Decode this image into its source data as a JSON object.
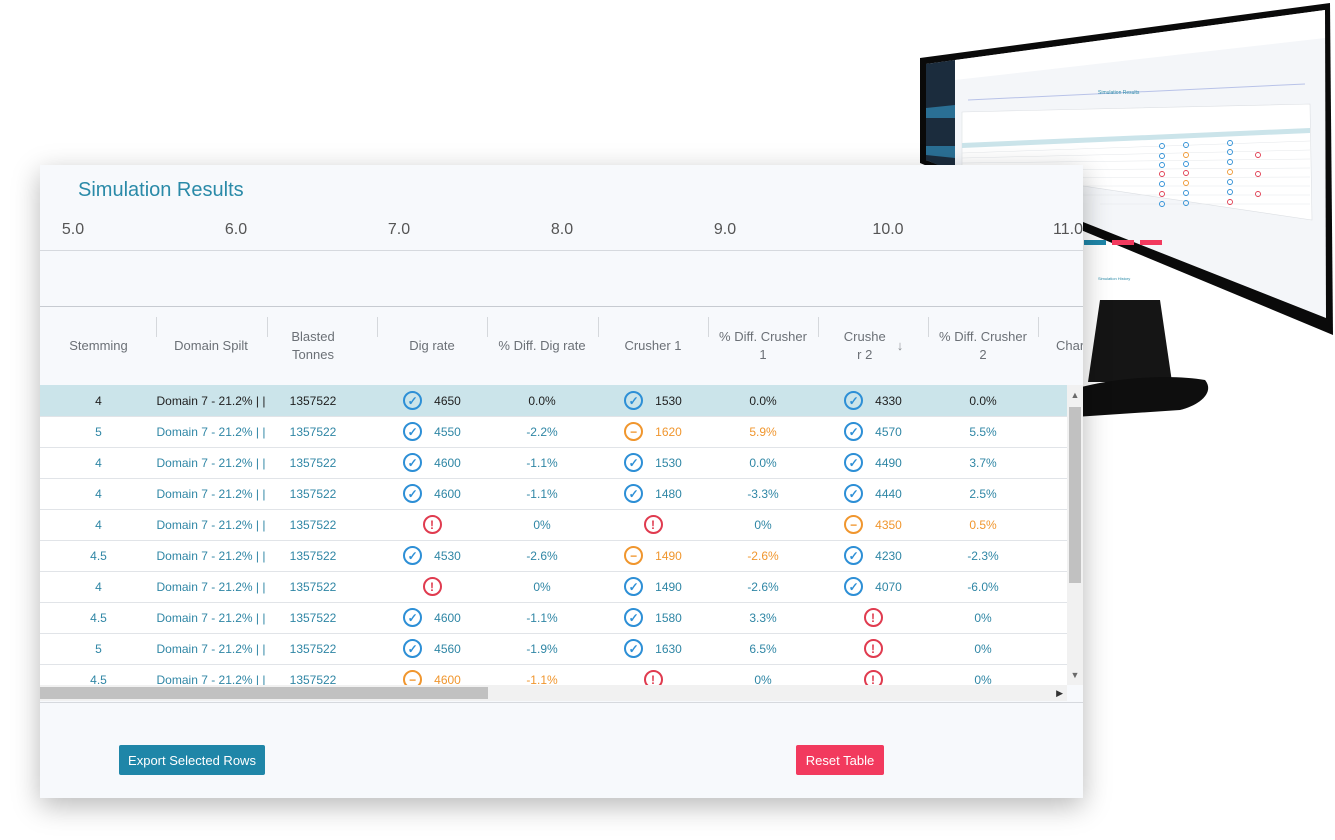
{
  "background_monitor": {
    "screen_title": "Simulation Results",
    "footer_title": "Simulation History"
  },
  "panel": {
    "title": "Simulation Results",
    "axis_ticks": [
      "5.0",
      "6.0",
      "7.0",
      "8.0",
      "9.0",
      "10.0",
      "11.0"
    ]
  },
  "table": {
    "columns": [
      "Stemming",
      "Domain Spilt",
      "Blasted Tonnes",
      "Dig rate",
      "% Diff. Dig rate",
      "Crusher 1",
      "% Diff. Crusher 1",
      "Crusher 2",
      "% Diff. Crusher 2",
      "Charge co"
    ],
    "sorted_column": "Crusher 2",
    "rows": [
      {
        "selected": true,
        "stemming": "4",
        "domain": "Domain 7 - 21.2% | |",
        "tonnes": "1357522",
        "dig_status": "ok",
        "dig": "4650",
        "dig_diff": "0.0%",
        "c1_status": "ok",
        "c1": "1530",
        "c1_diff": "0.0%",
        "c2_status": "ok",
        "c2": "4330",
        "c2_diff": "0.0%"
      },
      {
        "selected": false,
        "stemming": "5",
        "domain": "Domain 7 - 21.2% | |",
        "tonnes": "1357522",
        "dig_status": "ok",
        "dig": "4550",
        "dig_diff": "-2.2%",
        "c1_status": "warn",
        "c1": "1620",
        "c1_diff": "5.9%",
        "c2_status": "ok",
        "c2": "4570",
        "c2_diff": "5.5%"
      },
      {
        "selected": false,
        "stemming": "4",
        "domain": "Domain 7 - 21.2% | |",
        "tonnes": "1357522",
        "dig_status": "ok",
        "dig": "4600",
        "dig_diff": "-1.1%",
        "c1_status": "ok",
        "c1": "1530",
        "c1_diff": "0.0%",
        "c2_status": "ok",
        "c2": "4490",
        "c2_diff": "3.7%"
      },
      {
        "selected": false,
        "stemming": "4",
        "domain": "Domain 7 - 21.2% | |",
        "tonnes": "1357522",
        "dig_status": "ok",
        "dig": "4600",
        "dig_diff": "-1.1%",
        "c1_status": "ok",
        "c1": "1480",
        "c1_diff": "-3.3%",
        "c2_status": "ok",
        "c2": "4440",
        "c2_diff": "2.5%"
      },
      {
        "selected": false,
        "stemming": "4",
        "domain": "Domain 7 - 21.2% | |",
        "tonnes": "1357522",
        "dig_status": "bad",
        "dig": "",
        "dig_diff": "0%",
        "c1_status": "bad",
        "c1": "",
        "c1_diff": "0%",
        "c2_status": "warn",
        "c2": "4350",
        "c2_diff": "0.5%"
      },
      {
        "selected": false,
        "stemming": "4.5",
        "domain": "Domain 7 - 21.2% | |",
        "tonnes": "1357522",
        "dig_status": "ok",
        "dig": "4530",
        "dig_diff": "-2.6%",
        "c1_status": "warn",
        "c1": "1490",
        "c1_diff": "-2.6%",
        "c2_status": "ok",
        "c2": "4230",
        "c2_diff": "-2.3%"
      },
      {
        "selected": false,
        "stemming": "4",
        "domain": "Domain 7 - 21.2% | |",
        "tonnes": "1357522",
        "dig_status": "bad",
        "dig": "",
        "dig_diff": "0%",
        "c1_status": "ok",
        "c1": "1490",
        "c1_diff": "-2.6%",
        "c2_status": "ok",
        "c2": "4070",
        "c2_diff": "-6.0%"
      },
      {
        "selected": false,
        "stemming": "4.5",
        "domain": "Domain 7 - 21.2% | |",
        "tonnes": "1357522",
        "dig_status": "ok",
        "dig": "4600",
        "dig_diff": "-1.1%",
        "c1_status": "ok",
        "c1": "1580",
        "c1_diff": "3.3%",
        "c2_status": "bad",
        "c2": "",
        "c2_diff": "0%"
      },
      {
        "selected": false,
        "stemming": "5",
        "domain": "Domain 7 - 21.2% | |",
        "tonnes": "1357522",
        "dig_status": "ok",
        "dig": "4560",
        "dig_diff": "-1.9%",
        "c1_status": "ok",
        "c1": "1630",
        "c1_diff": "6.5%",
        "c2_status": "bad",
        "c2": "",
        "c2_diff": "0%"
      },
      {
        "selected": false,
        "stemming": "4.5",
        "domain": "Domain 7 - 21.2% | |",
        "tonnes": "1357522",
        "dig_status": "warn",
        "dig": "4600",
        "dig_diff": "-1.1%",
        "c1_status": "bad",
        "c1": "",
        "c1_diff": "0%",
        "c2_status": "bad",
        "c2": "",
        "c2_diff": "0%"
      }
    ]
  },
  "buttons": {
    "export_label": "Export Selected Rows",
    "reset_label": "Reset Table"
  },
  "colors": {
    "accent": "#1f86a8",
    "ok": "#2d8fd6",
    "warn": "#f0962e",
    "bad": "#e03b4f",
    "reset": "#f23a5e"
  }
}
